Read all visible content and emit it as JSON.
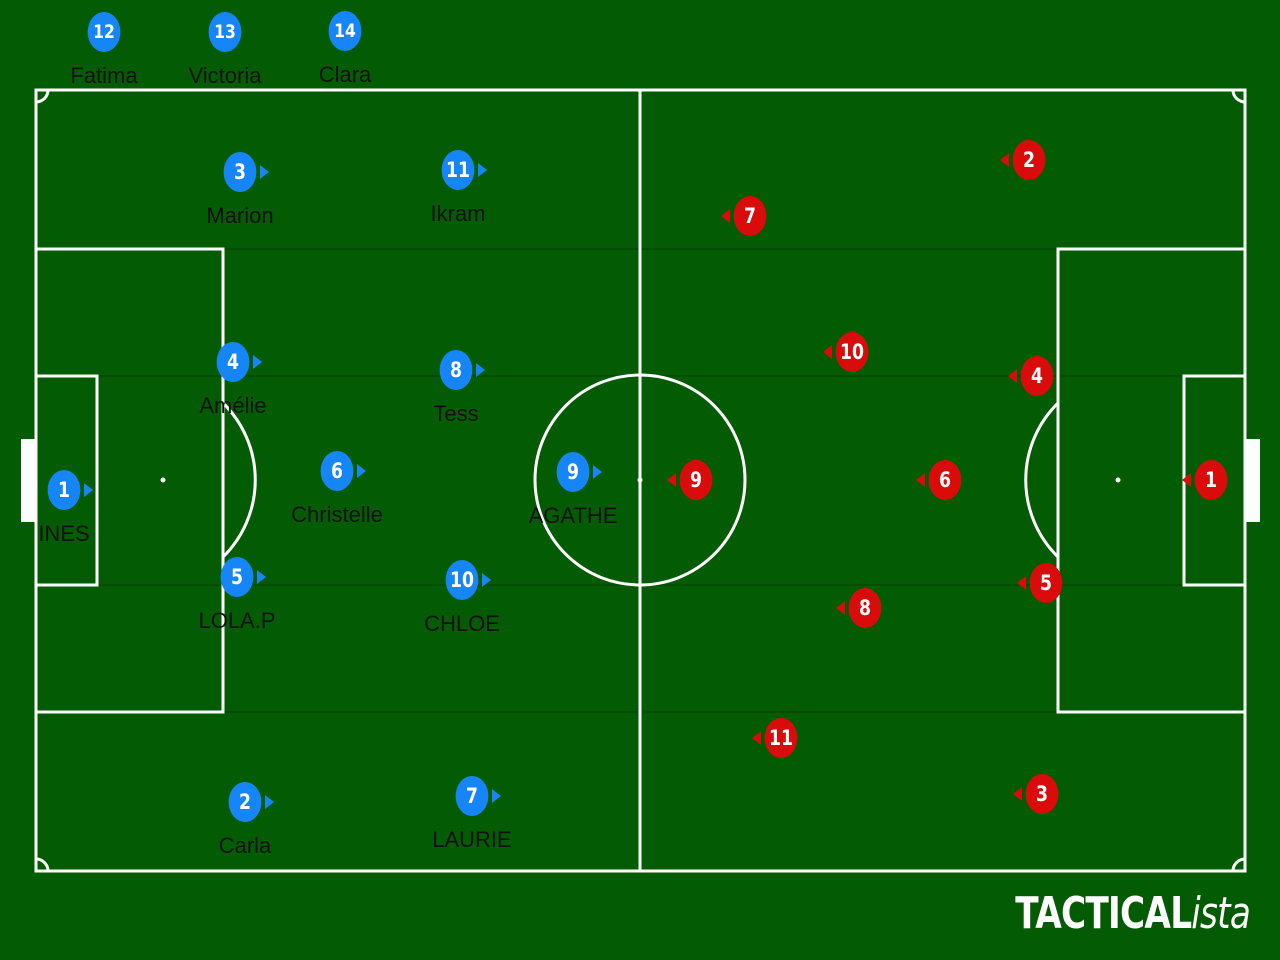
{
  "colors": {
    "pitch": "#035c03",
    "lines": "#ffffff",
    "home_team": "#1685f8",
    "away_team": "#d90b0b"
  },
  "brand": {
    "part1": "TACTICAL",
    "part2": "ista"
  },
  "substitutes": [
    {
      "number": "12",
      "name": "Fatima"
    },
    {
      "number": "13",
      "name": "Victoria"
    },
    {
      "number": "14",
      "name": "Clara"
    }
  ],
  "home_team": {
    "players": [
      {
        "number": "1",
        "name": "INES"
      },
      {
        "number": "2",
        "name": "Carla"
      },
      {
        "number": "3",
        "name": "Marion"
      },
      {
        "number": "4",
        "name": "Amélie"
      },
      {
        "number": "5",
        "name": "LOLA.P"
      },
      {
        "number": "6",
        "name": "Christelle"
      },
      {
        "number": "7",
        "name": "LAURIE"
      },
      {
        "number": "8",
        "name": "Tess"
      },
      {
        "number": "9",
        "name": "AGATHE"
      },
      {
        "number": "10",
        "name": "CHLOE"
      },
      {
        "number": "11",
        "name": "Ikram"
      }
    ]
  },
  "away_team": {
    "players": [
      {
        "number": "1"
      },
      {
        "number": "2"
      },
      {
        "number": "3"
      },
      {
        "number": "4"
      },
      {
        "number": "5"
      },
      {
        "number": "6"
      },
      {
        "number": "7"
      },
      {
        "number": "8"
      },
      {
        "number": "9"
      },
      {
        "number": "10"
      },
      {
        "number": "11"
      }
    ]
  }
}
